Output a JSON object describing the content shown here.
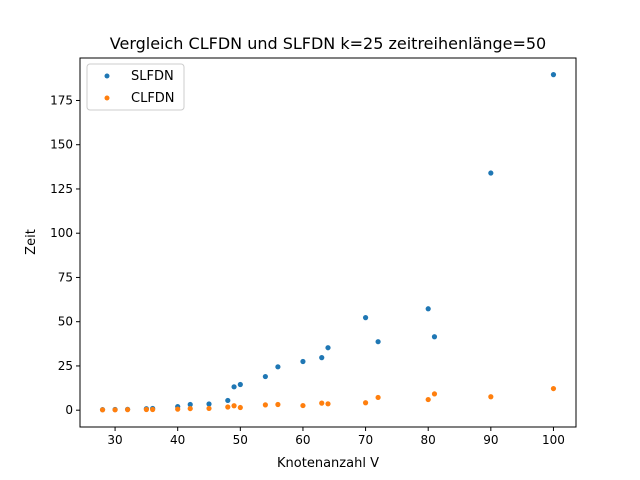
{
  "chart_data": {
    "type": "scatter",
    "title": "Vergleich CLFDN und SLFDN k=25 zeitreihenlänge=50",
    "xlabel": "Knotenanzahl V",
    "ylabel": "Zeit",
    "xlim": [
      24.4,
      103.6
    ],
    "ylim": [
      -9.5,
      199.0
    ],
    "xticks": [
      30,
      40,
      50,
      60,
      70,
      80,
      90,
      100
    ],
    "yticks": [
      0,
      25,
      50,
      75,
      100,
      125,
      150,
      175
    ],
    "grid": false,
    "legend_position": "top-left",
    "series": [
      {
        "name": "SLFDN",
        "color": "#1f77b4",
        "points": [
          {
            "x": 28,
            "y": 0.3
          },
          {
            "x": 30,
            "y": 0.4
          },
          {
            "x": 32,
            "y": 0.5
          },
          {
            "x": 35,
            "y": 0.8
          },
          {
            "x": 36,
            "y": 1.0
          },
          {
            "x": 40,
            "y": 2.0
          },
          {
            "x": 42,
            "y": 3.2
          },
          {
            "x": 45,
            "y": 3.5
          },
          {
            "x": 48,
            "y": 5.5
          },
          {
            "x": 49,
            "y": 13.2
          },
          {
            "x": 50,
            "y": 14.5
          },
          {
            "x": 54,
            "y": 19.0
          },
          {
            "x": 56,
            "y": 24.5
          },
          {
            "x": 60,
            "y": 27.5
          },
          {
            "x": 63,
            "y": 29.7
          },
          {
            "x": 64,
            "y": 35.3
          },
          {
            "x": 70,
            "y": 52.3
          },
          {
            "x": 72,
            "y": 38.7
          },
          {
            "x": 80,
            "y": 57.3
          },
          {
            "x": 81,
            "y": 41.5
          },
          {
            "x": 90,
            "y": 134.0
          },
          {
            "x": 100,
            "y": 189.6
          }
        ]
      },
      {
        "name": "CLFDN",
        "color": "#ff7f0e",
        "points": [
          {
            "x": 28,
            "y": 0.2
          },
          {
            "x": 30,
            "y": 0.2
          },
          {
            "x": 32,
            "y": 0.3
          },
          {
            "x": 35,
            "y": 0.4
          },
          {
            "x": 36,
            "y": 0.4
          },
          {
            "x": 40,
            "y": 0.6
          },
          {
            "x": 42,
            "y": 0.9
          },
          {
            "x": 45,
            "y": 1.0
          },
          {
            "x": 48,
            "y": 1.8
          },
          {
            "x": 49,
            "y": 2.5
          },
          {
            "x": 50,
            "y": 1.5
          },
          {
            "x": 54,
            "y": 3.0
          },
          {
            "x": 56,
            "y": 3.2
          },
          {
            "x": 60,
            "y": 2.6
          },
          {
            "x": 63,
            "y": 4.0
          },
          {
            "x": 64,
            "y": 3.6
          },
          {
            "x": 70,
            "y": 4.2
          },
          {
            "x": 72,
            "y": 7.2
          },
          {
            "x": 80,
            "y": 6.0
          },
          {
            "x": 81,
            "y": 9.2
          },
          {
            "x": 90,
            "y": 7.6
          },
          {
            "x": 100,
            "y": 12.2
          }
        ]
      }
    ]
  }
}
